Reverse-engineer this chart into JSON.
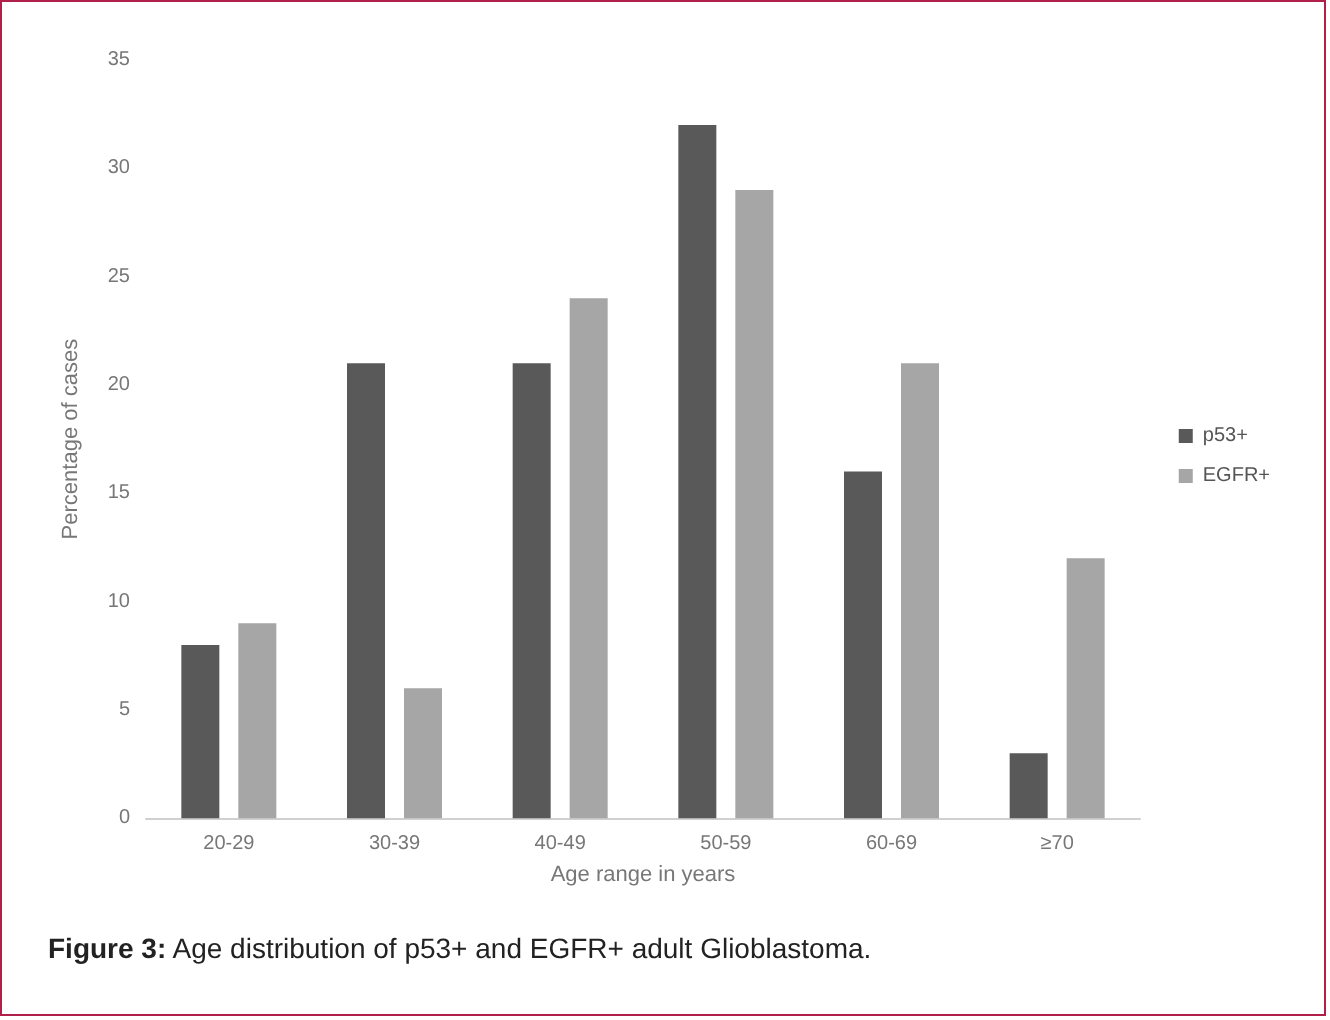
{
  "chart_data": {
    "type": "bar",
    "xlabel": "Age range in years",
    "ylabel": "Percentage of cases",
    "categories": [
      "20-29",
      "30-39",
      "40-49",
      "50-59",
      "60-69",
      "≥70"
    ],
    "series": [
      {
        "name": "p53+",
        "color": "#595959",
        "values": [
          8,
          21,
          21,
          32,
          16,
          3
        ]
      },
      {
        "name": "EGFR+",
        "color": "#a6a6a6",
        "values": [
          9,
          6,
          24,
          29,
          21,
          12
        ]
      }
    ],
    "ylim": [
      0,
      35
    ],
    "yticks": [
      0,
      5,
      10,
      15,
      20,
      25,
      30,
      35
    ],
    "grid": false,
    "legend": "right",
    "annotations": [
      "Figure 3: Age distribution of p53+ and EGFR+ adult Glioblastoma."
    ]
  }
}
